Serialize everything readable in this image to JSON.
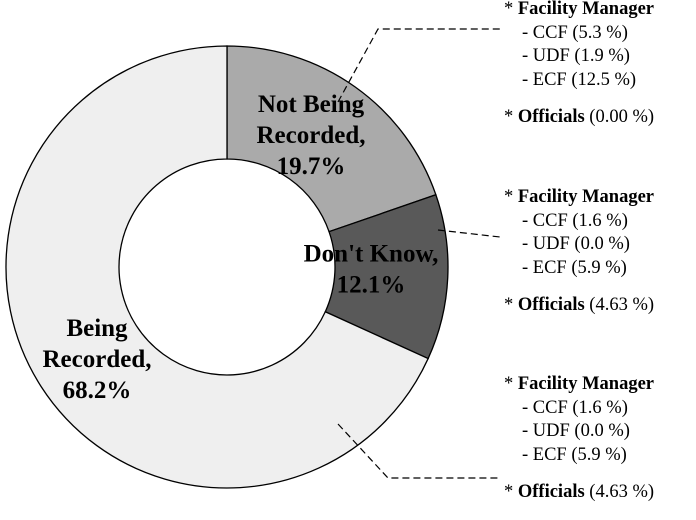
{
  "chart_data": {
    "type": "pie",
    "donut": true,
    "colors": [
      "#aaaaaa",
      "#595959",
      "#efefef"
    ],
    "slices": [
      {
        "label_lines": [
          "Not Being",
          "Recorded,",
          "19.7%"
        ],
        "value": 19.7
      },
      {
        "label_lines": [
          "Don't Know,",
          "12.1%"
        ],
        "value": 12.1
      },
      {
        "label_lines": [
          "Being",
          "Recorded,",
          "68.2%"
        ],
        "value": 68.2
      }
    ],
    "annotations": [
      {
        "heading": "Facility Manager",
        "items": [
          "- CCF  (5.3 %)",
          "- UDF (1.9 %)",
          "- ECF  (12.5 %)"
        ],
        "officials_label": "Officials",
        "officials_value": "(0.00 %)"
      },
      {
        "heading": "Facility Manager",
        "items": [
          "- CCF  (1.6 %)",
          "- UDF (0.0 %)",
          "- ECF  (5.9 %)"
        ],
        "officials_label": "Officials",
        "officials_value": "(4.63 %)"
      },
      {
        "heading": "Facility Manager",
        "items": [
          "- CCF  (1.6 %)",
          "- UDF  (0.0 %)",
          "- ECF (5.9 %)"
        ],
        "officials_label": "Officials",
        "officials_value": "(4.63 %)"
      }
    ]
  }
}
